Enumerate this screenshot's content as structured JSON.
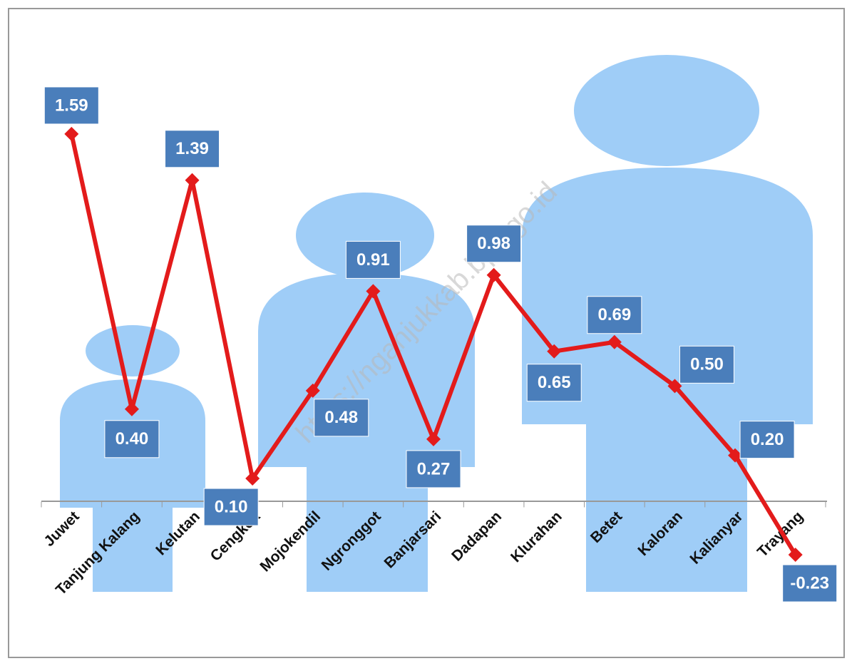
{
  "chart_data": {
    "type": "line",
    "watermark": "https://nganjukkab.bps.go.id",
    "categories": [
      "Juwet",
      "Tanjung Kalang",
      "Kelutan",
      "Cengkok",
      "Mojokendil",
      "Ngronggot",
      "Banjarsari",
      "Dadapan",
      "Klurahan",
      "Betet",
      "Kaloran",
      "Kalianyar",
      "Trayang"
    ],
    "values": [
      1.59,
      0.4,
      1.39,
      0.1,
      0.48,
      0.91,
      0.27,
      0.98,
      0.65,
      0.69,
      0.5,
      0.2,
      -0.23
    ],
    "value_labels": [
      "1.59",
      "0.40",
      "1.39",
      "0.10",
      "0.48",
      "0.91",
      "0.27",
      "0.98",
      "0.65",
      "0.69",
      "0.50",
      "0.20",
      "-0.23"
    ],
    "color": "#e31b1b",
    "label_color": "#4a7ebb",
    "ylim": [
      -0.6,
      2.0
    ]
  }
}
